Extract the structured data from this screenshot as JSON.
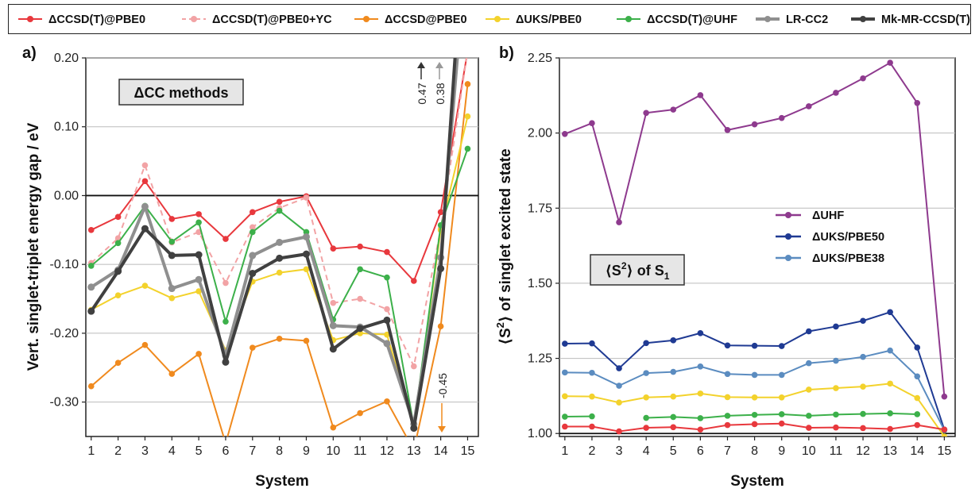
{
  "legend": [
    {
      "label": "ΔCCSD(T)@PBE0",
      "color": "#e8383d",
      "dash": false,
      "marker": true,
      "lightColor": null
    },
    {
      "label": "ΔCCSD(T)@PBE0+YC",
      "color": "#f2a3a5",
      "dash": true,
      "marker": true,
      "lightColor": null
    },
    {
      "label": "ΔCCSD@PBE0",
      "color": "#f08a1e",
      "dash": false,
      "marker": true,
      "lightColor": null
    },
    {
      "label": "ΔUKS/PBE0",
      "color": "#f3d22c",
      "dash": false,
      "marker": true,
      "lightColor": null
    },
    {
      "label": "ΔCCSD(T)@UHF",
      "color": "#3cb04a",
      "dash": false,
      "marker": true,
      "lightColor": null
    },
    {
      "label": "LR-CC2",
      "color": "#8f8f8f",
      "dash": false,
      "marker": true,
      "lightColor": null
    },
    {
      "label": "Mk-MR-CCSD(T)",
      "color": "#404040",
      "dash": false,
      "marker": true,
      "lightColor": null
    }
  ],
  "panels": {
    "a": {
      "panel_label": "a)",
      "box_label": "ΔCC methods",
      "arrow_up_1": "0.47",
      "arrow_up_2": "0.38",
      "arrow_down": "-0.45",
      "xlabel": "System",
      "ylabel": "Vert. singlet-triplet energy gap / eV",
      "yticks": [
        "0.20",
        "0.10",
        "0.00",
        "-0.10",
        "-0.20",
        "-0.30"
      ],
      "xticks": [
        "1",
        "2",
        "3",
        "4",
        "5",
        "6",
        "7",
        "8",
        "9",
        "10",
        "11",
        "12",
        "13",
        "14",
        "15"
      ]
    },
    "b": {
      "panel_label": "b)",
      "box_label_main": "⟨S",
      "box_label_sup": "2",
      "box_label_mid": "⟩ of S",
      "box_label_sub": "1",
      "xlabel": "System",
      "ylabel_main": "⟨S",
      "ylabel_sup": "2",
      "ylabel_rest": "⟩ of singlet excited state",
      "yticks": [
        "2.25",
        "2.00",
        "1.75",
        "1.50",
        "1.25",
        "1.00"
      ],
      "xticks": [
        "1",
        "2",
        "3",
        "4",
        "5",
        "6",
        "7",
        "8",
        "9",
        "10",
        "11",
        "12",
        "13",
        "14",
        "15"
      ],
      "inner_legend": [
        {
          "label": "ΔUHF",
          "color": "#8e3a8e"
        },
        {
          "label": "ΔUKS/PBE50",
          "color": "#1f3a93"
        },
        {
          "label": "ΔUKS/PBE38",
          "color": "#5b8cc0"
        }
      ]
    }
  },
  "chart_data": [
    {
      "type": "line",
      "panel": "a",
      "title": "ΔCC methods",
      "xlabel": "System",
      "ylabel": "Vert. singlet-triplet energy gap / eV",
      "x": [
        1,
        2,
        3,
        4,
        5,
        6,
        7,
        8,
        9,
        10,
        11,
        12,
        13,
        14,
        15
      ],
      "ylim": [
        -0.35,
        0.2
      ],
      "xlim": [
        0.8,
        15.4
      ],
      "grid": true,
      "series": [
        {
          "name": "ΔCCSD(T)@PBE0",
          "color": "#e8383d",
          "width": 2,
          "dash": false,
          "values": [
            -0.05,
            -0.031,
            0.021,
            -0.034,
            -0.027,
            -0.063,
            -0.024,
            -0.009,
            -0.001,
            -0.077,
            -0.074,
            -0.082,
            -0.124,
            -0.024,
            0.21
          ]
        },
        {
          "name": "ΔCCSD(T)@PBE0+YC",
          "color": "#f2a3a5",
          "width": 2,
          "dash": true,
          "values": [
            -0.098,
            -0.062,
            0.044,
            -0.068,
            -0.053,
            -0.127,
            -0.046,
            -0.018,
            -0.003,
            -0.156,
            -0.15,
            -0.165,
            -0.248,
            -0.048,
            0.21
          ]
        },
        {
          "name": "ΔCCSD@PBE0",
          "color": "#f08a1e",
          "width": 2,
          "dash": false,
          "values": [
            -0.277,
            -0.243,
            -0.217,
            -0.259,
            -0.23,
            -0.36,
            -0.221,
            -0.208,
            -0.211,
            -0.337,
            -0.316,
            -0.299,
            -0.37,
            -0.19,
            0.162
          ]
        },
        {
          "name": "ΔUKS/PBE0",
          "color": "#f3d22c",
          "width": 2,
          "dash": false,
          "values": [
            -0.166,
            -0.145,
            -0.131,
            -0.149,
            -0.139,
            -0.225,
            -0.125,
            -0.112,
            -0.107,
            -0.21,
            -0.2,
            -0.202,
            -0.335,
            -0.05,
            0.115
          ]
        },
        {
          "name": "ΔCCSD(T)@UHF",
          "color": "#3cb04a",
          "width": 2,
          "dash": false,
          "values": [
            -0.102,
            -0.069,
            -0.015,
            -0.067,
            -0.039,
            -0.183,
            -0.053,
            -0.022,
            -0.053,
            -0.18,
            -0.107,
            -0.119,
            -0.335,
            -0.043,
            0.068
          ]
        },
        {
          "name": "LR-CC2",
          "color": "#8f8f8f",
          "width": 4,
          "dash": false,
          "values": [
            -0.133,
            -0.108,
            -0.016,
            -0.135,
            -0.122,
            -0.232,
            -0.087,
            -0.068,
            -0.06,
            -0.189,
            -0.191,
            -0.215,
            -0.332,
            -0.09,
            0.38
          ]
        },
        {
          "name": "Mk-MR-CCSD(T)",
          "color": "#404040",
          "width": 4,
          "dash": false,
          "values": [
            -0.168,
            -0.11,
            -0.048,
            -0.087,
            -0.086,
            -0.242,
            -0.113,
            -0.091,
            -0.085,
            -0.223,
            -0.193,
            -0.181,
            -0.338,
            -0.106,
            0.47
          ]
        }
      ]
    },
    {
      "type": "line",
      "panel": "b",
      "xlabel": "System",
      "ylabel": "⟨S2⟩ of singlet excited state",
      "x": [
        1,
        2,
        3,
        4,
        5,
        6,
        7,
        8,
        9,
        10,
        11,
        12,
        13,
        14,
        15
      ],
      "ylim": [
        0.99,
        2.25
      ],
      "xlim": [
        0.8,
        15.4
      ],
      "grid": true,
      "series": [
        {
          "name": "ΔUHF",
          "color": "#8e3a8e",
          "values": [
            1.997,
            2.033,
            1.703,
            2.067,
            2.078,
            2.126,
            2.01,
            2.029,
            2.05,
            2.089,
            2.134,
            2.182,
            2.234,
            2.1,
            1.123
          ]
        },
        {
          "name": "ΔUKS/PBE50",
          "color": "#1f3a93",
          "values": [
            1.299,
            1.3,
            1.217,
            1.301,
            1.31,
            1.334,
            1.293,
            1.292,
            1.291,
            1.34,
            1.356,
            1.375,
            1.404,
            1.286,
            1.013
          ]
        },
        {
          "name": "ΔUKS/PBE38",
          "color": "#5b8cc0",
          "values": [
            1.203,
            1.202,
            1.159,
            1.201,
            1.205,
            1.223,
            1.198,
            1.195,
            1.195,
            1.234,
            1.242,
            1.255,
            1.276,
            1.19,
            1.011
          ]
        },
        {
          "name": "ΔUKS/PBE0",
          "color": "#f3d22c",
          "values": [
            1.124,
            1.123,
            1.103,
            1.12,
            1.123,
            1.133,
            1.121,
            1.12,
            1.12,
            1.146,
            1.151,
            1.156,
            1.166,
            1.118,
            0.99
          ]
        },
        {
          "name": "ΔCCSD(T)@UHF",
          "color": "#3cb04a",
          "values": [
            1.056,
            1.057,
            null,
            1.052,
            1.055,
            1.051,
            1.059,
            1.062,
            1.064,
            1.059,
            1.063,
            1.065,
            1.067,
            1.064,
            null
          ]
        },
        {
          "name": "ΔCCSD(T)@PBE0",
          "color": "#e8383d",
          "values": [
            1.023,
            1.023,
            1.007,
            1.019,
            1.021,
            1.013,
            1.028,
            1.031,
            1.033,
            1.019,
            1.02,
            1.018,
            1.015,
            1.028,
            1.013
          ]
        }
      ]
    }
  ]
}
